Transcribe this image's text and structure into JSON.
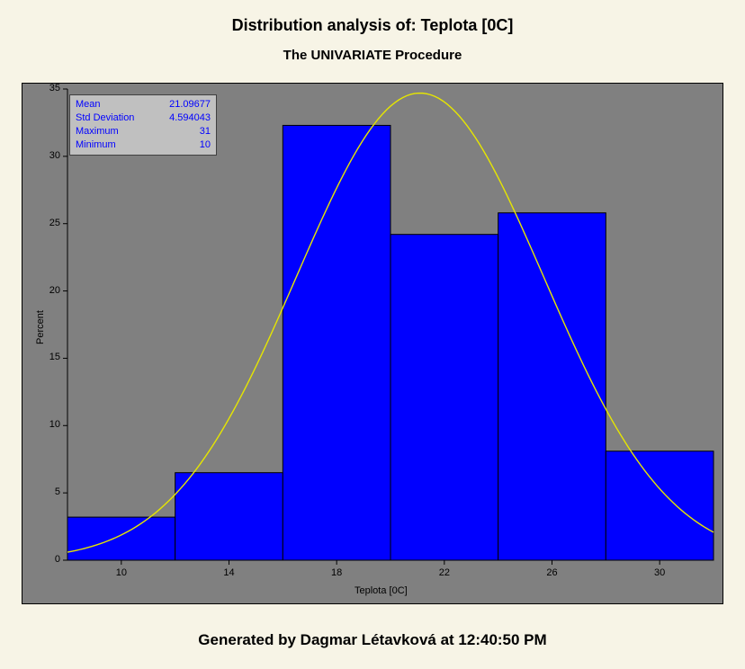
{
  "title": "Distribution analysis of: Teplota [0C]",
  "subtitle": "The UNIVARIATE Procedure",
  "footer": "Generated by Dagmar Létavková at 12:40:50 PM",
  "chart": {
    "type": "histogram",
    "xlabel": "Teplota [0C]",
    "ylabel": "Percent",
    "background_color": "#808080",
    "plot_border_color": "#000000",
    "page_background": "#f7f4e6",
    "bars": {
      "edges": [
        8,
        12,
        16,
        20,
        24,
        28,
        32
      ],
      "percents": [
        3.2,
        6.5,
        32.3,
        24.2,
        25.8,
        8.1
      ],
      "fill": "#0000ff",
      "stroke": "#000000",
      "stroke_width": 1
    },
    "x": {
      "lim": [
        8,
        32
      ],
      "ticks": [
        10,
        14,
        18,
        22,
        26,
        30
      ],
      "tick_fontsize": 11
    },
    "y": {
      "lim": [
        0,
        35
      ],
      "ticks": [
        0,
        5,
        10,
        15,
        20,
        25,
        30,
        35
      ],
      "tick_fontsize": 11
    },
    "curve": {
      "color": "#e6e600",
      "width": 1.4,
      "mean": 21.09677,
      "std": 4.594043,
      "peak_percent": 34.7,
      "bin_width": 4
    },
    "stats_box": {
      "bg": "#c0c0c0",
      "border": "#404040",
      "text_color": "#0000ff",
      "fontsize": 11,
      "rows": [
        {
          "label": "Mean",
          "value": "21.09677"
        },
        {
          "label": "Std Deviation",
          "value": "4.594043"
        },
        {
          "label": "Maximum",
          "value": "31"
        },
        {
          "label": "Minimum",
          "value": "10"
        }
      ]
    }
  }
}
